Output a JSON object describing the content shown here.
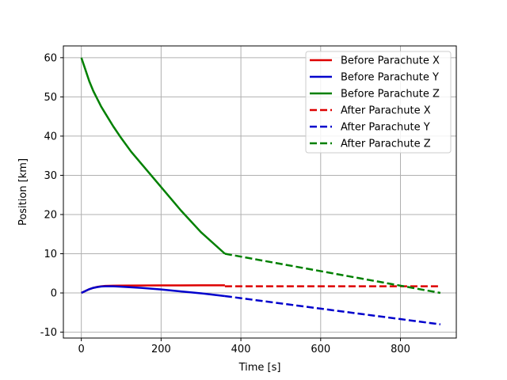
{
  "chart_data": {
    "type": "line",
    "title": "",
    "xlabel": "Time [s]",
    "ylabel": "Position [km]",
    "xlim": [
      -45,
      940
    ],
    "ylim": [
      -11.5,
      63
    ],
    "xticks": [
      0,
      200,
      400,
      600,
      800
    ],
    "yticks": [
      -10,
      0,
      10,
      20,
      30,
      40,
      50,
      60
    ],
    "grid": true,
    "legend_position": "top-right",
    "series": [
      {
        "name": "Before Parachute X",
        "color": "#dd0000",
        "style": "solid",
        "x": [
          0,
          10,
          20,
          30,
          40,
          50,
          60,
          80,
          100,
          150,
          200,
          250,
          300,
          360
        ],
        "y": [
          0,
          0.5,
          0.95,
          1.3,
          1.55,
          1.7,
          1.8,
          1.85,
          1.88,
          1.9,
          1.92,
          1.93,
          1.94,
          1.95
        ]
      },
      {
        "name": "Before Parachute Y",
        "color": "#0000cc",
        "style": "solid",
        "x": [
          0,
          10,
          20,
          30,
          40,
          50,
          60,
          80,
          100,
          150,
          200,
          250,
          300,
          360
        ],
        "y": [
          0,
          0.5,
          0.95,
          1.3,
          1.5,
          1.65,
          1.7,
          1.7,
          1.6,
          1.3,
          0.9,
          0.4,
          -0.1,
          -0.8
        ]
      },
      {
        "name": "Before Parachute Z",
        "color": "#008000",
        "style": "solid",
        "x": [
          0,
          10,
          20,
          30,
          40,
          50,
          60,
          80,
          100,
          125,
          150,
          200,
          250,
          300,
          360
        ],
        "y": [
          60,
          57,
          54,
          51.5,
          49.5,
          47.5,
          45.8,
          42.5,
          39.5,
          36,
          33,
          27,
          21,
          15.5,
          10
        ]
      },
      {
        "name": "After Parachute X",
        "color": "#dd0000",
        "style": "dashed",
        "x": [
          360,
          900
        ],
        "y": [
          1.7,
          1.7
        ]
      },
      {
        "name": "After Parachute Y",
        "color": "#0000cc",
        "style": "dashed",
        "x": [
          360,
          900
        ],
        "y": [
          -0.8,
          -8
        ]
      },
      {
        "name": "After Parachute Z",
        "color": "#008000",
        "style": "dashed",
        "x": [
          360,
          900
        ],
        "y": [
          10,
          0
        ]
      }
    ]
  }
}
